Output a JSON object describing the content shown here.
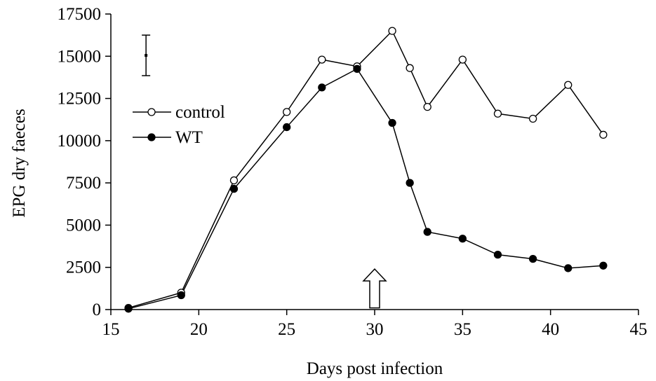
{
  "chart_data": {
    "type": "line",
    "xlabel": "Days post infection",
    "ylabel": "EPG dry faeces",
    "xlim": [
      15,
      45
    ],
    "ylim": [
      0,
      17500
    ],
    "xticks": [
      15,
      20,
      25,
      30,
      35,
      40,
      45
    ],
    "yticks": [
      0,
      2500,
      5000,
      7500,
      10000,
      12500,
      15000,
      17500
    ],
    "grid": false,
    "legend_position": "top-left",
    "series": [
      {
        "name": "control",
        "marker": "open-circle",
        "x": [
          16,
          19,
          22,
          25,
          27,
          29,
          31,
          32,
          33,
          35,
          37,
          39,
          41,
          43
        ],
        "y": [
          100,
          1000,
          7650,
          11700,
          14800,
          14400,
          16500,
          14300,
          12000,
          14800,
          11600,
          11300,
          13300,
          10350
        ]
      },
      {
        "name": "WT",
        "marker": "filled-circle",
        "x": [
          16,
          19,
          22,
          25,
          27,
          29,
          31,
          32,
          33,
          35,
          37,
          39,
          41,
          43
        ],
        "y": [
          50,
          850,
          7150,
          10800,
          13150,
          14250,
          11050,
          7500,
          4600,
          4200,
          3250,
          3000,
          2450,
          2600
        ]
      }
    ],
    "error_bar": {
      "x": 17,
      "center": 15050,
      "low": 13850,
      "high": 16250
    },
    "arrow_annotation": {
      "x": 30,
      "y_tip": 2400,
      "y_base": 100
    }
  }
}
